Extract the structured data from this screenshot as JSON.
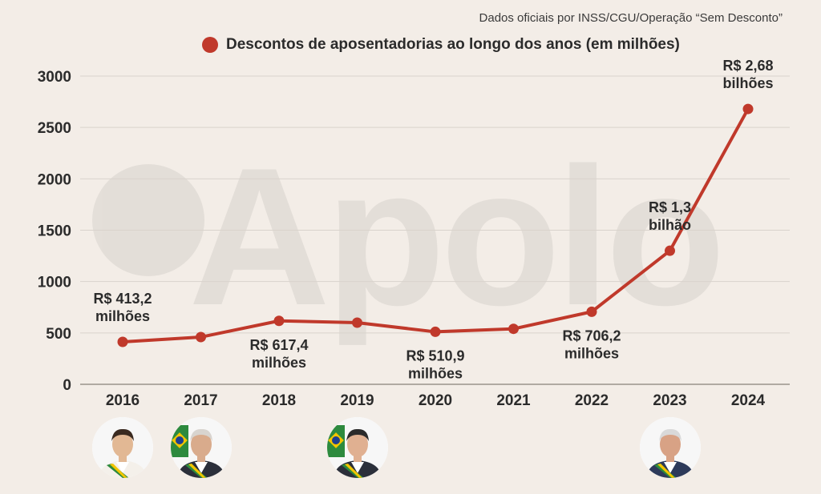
{
  "source": "Dados oficiais por INSS/CGU/Operação “Sem Desconto”",
  "watermark": "Apolo",
  "colors": {
    "line": "#c0392b",
    "background": "#f3ede7",
    "grid": "#d9d3cc",
    "text": "#2b2b2b"
  },
  "chart_data": {
    "type": "line",
    "legend": "Descontos de aposentadorias ao longo dos anos (em milhões)",
    "legend_position": "top",
    "grid": true,
    "ylim": [
      0,
      3000
    ],
    "yticks": [
      "0",
      "500",
      "1000",
      "1500",
      "2000",
      "2500",
      "3000"
    ],
    "categories": [
      "2016",
      "2017",
      "2018",
      "2019",
      "2020",
      "2021",
      "2022",
      "2023",
      "2024"
    ],
    "series": [
      {
        "name": "Descontos de aposentadorias ao longo dos anos (em milhões)",
        "values": [
          413.2,
          460,
          617.4,
          600,
          510.9,
          540,
          706.2,
          1300,
          2680
        ]
      }
    ],
    "annotations": [
      {
        "category": "2016",
        "lines": [
          "R$ 413,2",
          "milhões"
        ],
        "position": "above"
      },
      {
        "category": "2018",
        "lines": [
          "R$ 617,4",
          "milhões"
        ],
        "position": "below"
      },
      {
        "category": "2020",
        "lines": [
          "R$ 510,9",
          "milhões"
        ],
        "position": "below"
      },
      {
        "category": "2022",
        "lines": [
          "R$ 706,2",
          "milhões"
        ],
        "position": "below"
      },
      {
        "category": "2023",
        "lines": [
          "R$ 1,3",
          "bilhão"
        ],
        "position": "above"
      },
      {
        "category": "2024",
        "lines": [
          "R$ 2,68",
          "bilhões"
        ],
        "position": "above"
      }
    ]
  },
  "portraits": [
    {
      "category": "2016",
      "suit": "#f4f0ea",
      "sash": true,
      "flag": false,
      "hair": "#3a2a20",
      "skin": "#e2b894"
    },
    {
      "category": "2017",
      "suit": "#2b2f3a",
      "sash": true,
      "flag": true,
      "hair": "#d8d4cf",
      "skin": "#d9ab8c"
    },
    {
      "category": "2019",
      "suit": "#2b2f3a",
      "sash": true,
      "flag": true,
      "hair": "#2b2b2b",
      "skin": "#e0b091"
    },
    {
      "category": "2023",
      "suit": "#2d3a5a",
      "sash": true,
      "flag": false,
      "hair": "#d9d9d9",
      "skin": "#d8a285"
    }
  ]
}
